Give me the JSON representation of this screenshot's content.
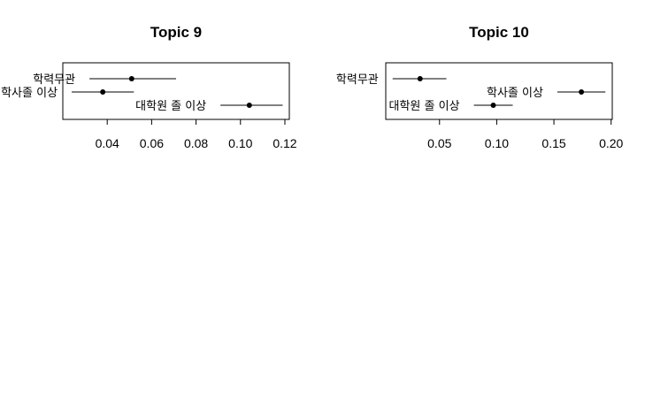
{
  "chart_data": [
    {
      "type": "scatter",
      "title": "Topic 9",
      "xlabel": "",
      "ylabel": "",
      "xlim": [
        0.02,
        0.122
      ],
      "xticks": [
        0.04,
        0.06,
        0.08,
        0.1,
        0.12
      ],
      "tick_labels": [
        "0.04",
        "0.06",
        "0.08",
        "0.10",
        "0.12"
      ],
      "grid": false,
      "points": [
        {
          "label": "학력무관",
          "estimate": 0.051,
          "ci_low": 0.032,
          "ci_high": 0.071
        },
        {
          "label": "학사졸 이상",
          "estimate": 0.038,
          "ci_low": 0.024,
          "ci_high": 0.052
        },
        {
          "label": "대학원 졸 이상",
          "estimate": 0.104,
          "ci_low": 0.091,
          "ci_high": 0.119
        }
      ]
    },
    {
      "type": "scatter",
      "title": "Topic 10",
      "xlabel": "",
      "ylabel": "",
      "xlim": [
        0.003,
        0.201
      ],
      "xticks": [
        0.05,
        0.1,
        0.15,
        0.2
      ],
      "tick_labels": [
        "0.05",
        "0.10",
        "0.15",
        "0.20"
      ],
      "grid": false,
      "points": [
        {
          "label": "학력무관",
          "estimate": 0.033,
          "ci_low": 0.009,
          "ci_high": 0.056
        },
        {
          "label": "학사졸 이상",
          "estimate": 0.174,
          "ci_low": 0.153,
          "ci_high": 0.195
        },
        {
          "label": "대학원 졸 이상",
          "estimate": 0.097,
          "ci_low": 0.08,
          "ci_high": 0.114
        }
      ]
    }
  ]
}
